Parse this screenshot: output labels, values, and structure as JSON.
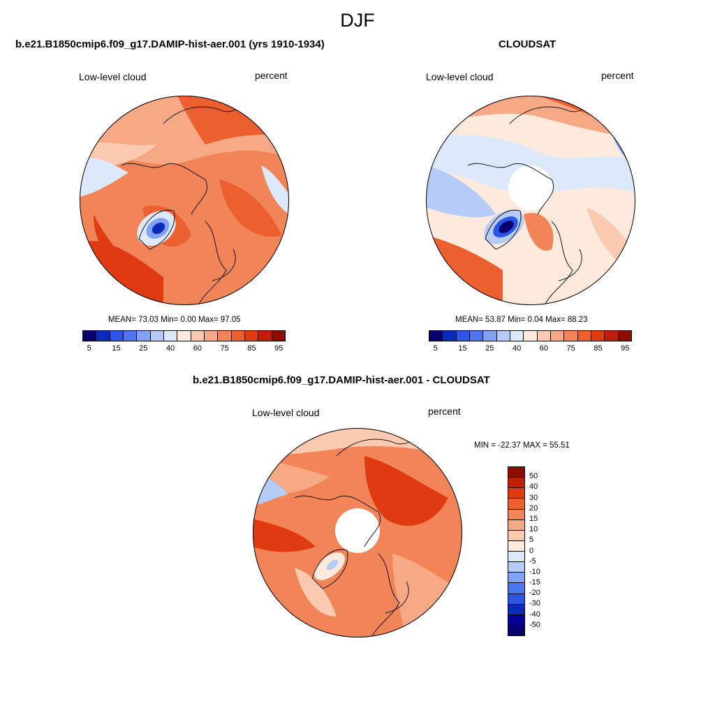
{
  "season": "DJF",
  "panels": {
    "model": {
      "title": "b.e21.B1850cmip6.f09_g17.DAMIP-hist-aer.001 (yrs 1910-1934)",
      "left_label": "Low-level cloud",
      "right_label": "percent",
      "stats": "MEAN=  73.03  Min=   0.00  Max=  97.05"
    },
    "obs": {
      "title": "CLOUDSAT",
      "left_label": "Low-level cloud",
      "right_label": "percent",
      "stats": "MEAN=  53.87  Min=   0.04  Max=  88.23"
    },
    "diff": {
      "title": "b.e21.B1850cmip6.f09_g17.DAMIP-hist-aer.001 - CLOUDSAT",
      "left_label": "Low-level cloud",
      "right_label": "percent",
      "minmax": "MIN = -22.37  MAX =  55.51"
    }
  },
  "colorbar_abs": {
    "colors": [
      "#08006e",
      "#0a2ab8",
      "#2a56e6",
      "#4a78f0",
      "#7fa2f5",
      "#b5ccf8",
      "#dce9fa",
      "#fdeadd",
      "#fbcab0",
      "#f7a885",
      "#f28558",
      "#ec6030",
      "#e03a12",
      "#c01e06",
      "#8c0d00"
    ],
    "ticks": [
      "5",
      "15",
      "25",
      "40",
      "60",
      "75",
      "85",
      "95"
    ]
  },
  "colorbar_diff": {
    "colors": [
      "#8c0d00",
      "#c01e06",
      "#e03a12",
      "#ec6030",
      "#f28558",
      "#f7a885",
      "#fbcab0",
      "#fdeadd",
      "#dce9fa",
      "#b5ccf8",
      "#7fa2f5",
      "#4a78f0",
      "#2a56e6",
      "#0a2ab8",
      "#06009a",
      "#08006e"
    ],
    "ticks": [
      "50",
      "40",
      "30",
      "20",
      "15",
      "10",
      "5",
      "0",
      "-5",
      "-10",
      "-15",
      "-20",
      "-30",
      "-40",
      "-50"
    ]
  }
}
